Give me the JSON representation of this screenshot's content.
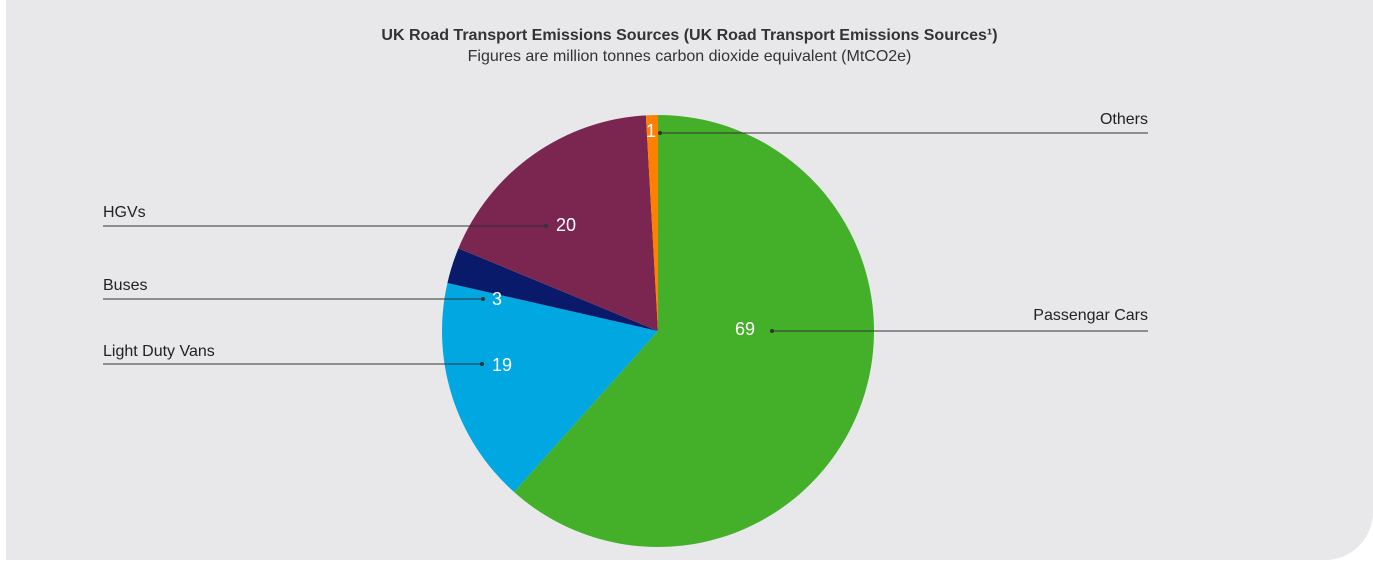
{
  "chart_data": {
    "type": "pie",
    "title": "UK Road Transport Emissions Sources (UK Road Transport Emissions Sources¹)",
    "subtitle": "Figures are million tonnes carbon dioxide equivalent (MtCO2e)",
    "slices": [
      {
        "label": "Passengar Cars",
        "value": 69,
        "color": "#44b02a"
      },
      {
        "label": "Light Duty Vans",
        "value": 19,
        "color": "#00a7e0"
      },
      {
        "label": "Buses",
        "value": 3,
        "color": "#0a1a6b"
      },
      {
        "label": "HGVs",
        "value": 20,
        "color": "#7b2651"
      },
      {
        "label": "Others",
        "value": 1,
        "color": "#ff7f00"
      }
    ]
  }
}
